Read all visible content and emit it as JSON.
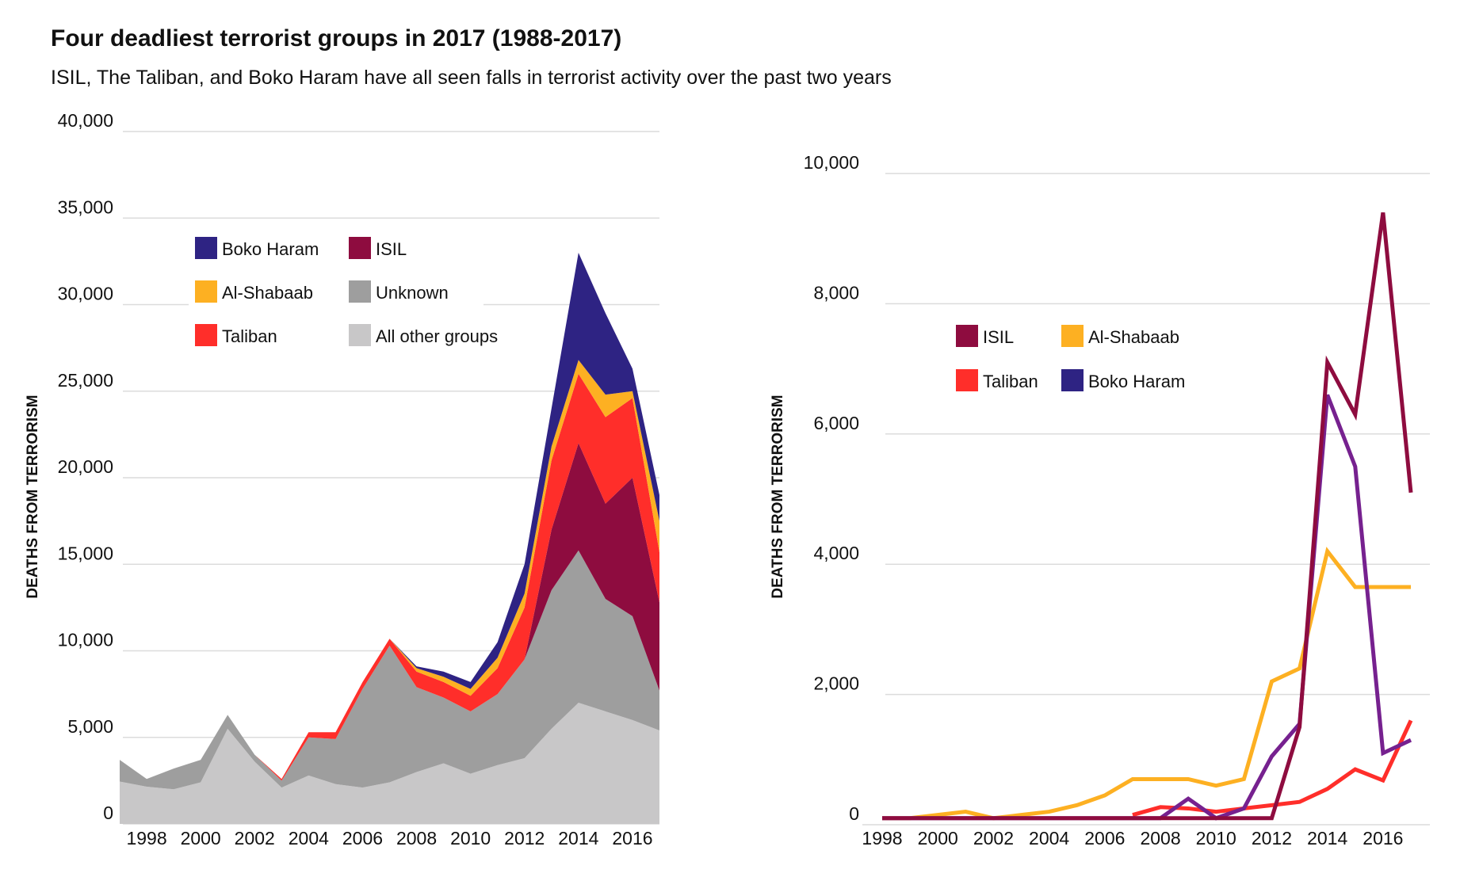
{
  "title": "Four deadliest terrorist groups in 2017 (1988-2017)",
  "subtitle": "ISIL, The Taliban, and Boko Haram have all seen falls in terrorist activity over the past two years",
  "colors": {
    "Boko Haram": "#2e2383",
    "Boko Haram line": "#76218f",
    "ISIL": "#8e0c3f",
    "Al-Shabaab": "#fdb022",
    "Taliban": "#ff2e2a",
    "Unknown": "#9e9e9e",
    "All other groups": "#c8c7c8"
  },
  "chart_data": [
    {
      "type": "area",
      "stacked": true,
      "ylabel": "DEATHS FROM TERRORISM",
      "xlabel": "",
      "ylim": [
        0,
        40000
      ],
      "yticks": [
        "0",
        "5,000",
        "10,000",
        "15,000",
        "20,000",
        "25,000",
        "30,000",
        "35,000",
        "40,000"
      ],
      "xticks": [
        "1998",
        "2000",
        "2002",
        "2004",
        "2006",
        "2008",
        "2010",
        "2012",
        "2014",
        "2016"
      ],
      "grid": true,
      "legend_placement": "top-left",
      "legend": [
        "Boko Haram",
        "ISIL",
        "Al-Shabaab",
        "Unknown",
        "Taliban",
        "All other groups"
      ],
      "x": [
        1997,
        1998,
        1999,
        2000,
        2001,
        2002,
        2003,
        2004,
        2005,
        2006,
        2007,
        2008,
        2009,
        2010,
        2011,
        2012,
        2013,
        2014,
        2015,
        2016,
        2017
      ],
      "series": [
        {
          "name": "All other groups",
          "values": [
            2450,
            2150,
            2000,
            2400,
            5500,
            3600,
            2100,
            2800,
            2300,
            2100,
            2400,
            3000,
            3500,
            2900,
            3400,
            3800,
            5500,
            7000,
            6500,
            6000,
            5400
          ]
        },
        {
          "name": "Unknown",
          "values": [
            1250,
            450,
            1200,
            1300,
            800,
            400,
            400,
            2200,
            2600,
            5700,
            7900,
            4900,
            3800,
            3600,
            4100,
            5700,
            8000,
            8800,
            6500,
            6000,
            2300
          ]
        },
        {
          "name": "ISIL",
          "values": [
            0,
            0,
            0,
            0,
            0,
            0,
            0,
            0,
            0,
            0,
            0,
            0,
            0,
            0,
            0,
            0,
            3500,
            6200,
            5500,
            8000,
            5100
          ]
        },
        {
          "name": "Taliban",
          "values": [
            0,
            0,
            0,
            0,
            0,
            0,
            100,
            300,
            400,
            400,
            400,
            900,
            900,
            900,
            1500,
            3000,
            4000,
            4000,
            5000,
            4600,
            2900
          ]
        },
        {
          "name": "Al-Shabaab",
          "values": [
            0,
            0,
            0,
            0,
            0,
            0,
            0,
            0,
            0,
            0,
            0,
            200,
            300,
            400,
            600,
            800,
            800,
            800,
            1300,
            400,
            1800
          ]
        },
        {
          "name": "Boko Haram",
          "values": [
            0,
            0,
            0,
            0,
            0,
            0,
            0,
            0,
            0,
            0,
            0,
            100,
            300,
            400,
            900,
            1700,
            2200,
            6200,
            4700,
            1300,
            1500
          ]
        }
      ]
    },
    {
      "type": "line",
      "ylabel": "DEATHS FROM TERRORISM",
      "xlabel": "",
      "ylim": [
        0,
        10000
      ],
      "yticks": [
        "0",
        "2,000",
        "4,000",
        "6,000",
        "8,000",
        "10,000"
      ],
      "xticks": [
        "1998",
        "2000",
        "2002",
        "2004",
        "2006",
        "2008",
        "2010",
        "2012",
        "2014",
        "2016"
      ],
      "grid": true,
      "legend_placement": "top-left",
      "legend": [
        "ISIL",
        "Al-Shabaab",
        "Taliban",
        "Boko Haram"
      ],
      "x": [
        1998,
        1999,
        2000,
        2001,
        2002,
        2003,
        2004,
        2005,
        2006,
        2007,
        2008,
        2009,
        2010,
        2011,
        2012,
        2013,
        2014,
        2015,
        2016,
        2017
      ],
      "series": [
        {
          "name": "Al-Shabaab",
          "values": [
            100,
            100,
            150,
            200,
            100,
            150,
            200,
            300,
            450,
            700,
            700,
            700,
            600,
            700,
            2200,
            2400,
            4200,
            3650,
            3650,
            3650
          ]
        },
        {
          "name": "Taliban",
          "values": [
            null,
            null,
            null,
            null,
            null,
            null,
            null,
            null,
            null,
            150,
            270,
            250,
            200,
            250,
            300,
            350,
            550,
            850,
            680,
            1600
          ]
        },
        {
          "name": "Boko Haram",
          "values": [
            100,
            100,
            100,
            100,
            100,
            100,
            100,
            100,
            100,
            100,
            100,
            400,
            100,
            250,
            1050,
            1550,
            6600,
            5500,
            1100,
            1300
          ]
        },
        {
          "name": "ISIL",
          "values": [
            100,
            100,
            100,
            100,
            100,
            100,
            100,
            100,
            100,
            100,
            100,
            100,
            100,
            100,
            100,
            1500,
            7100,
            6300,
            9400,
            5100
          ]
        }
      ]
    }
  ]
}
